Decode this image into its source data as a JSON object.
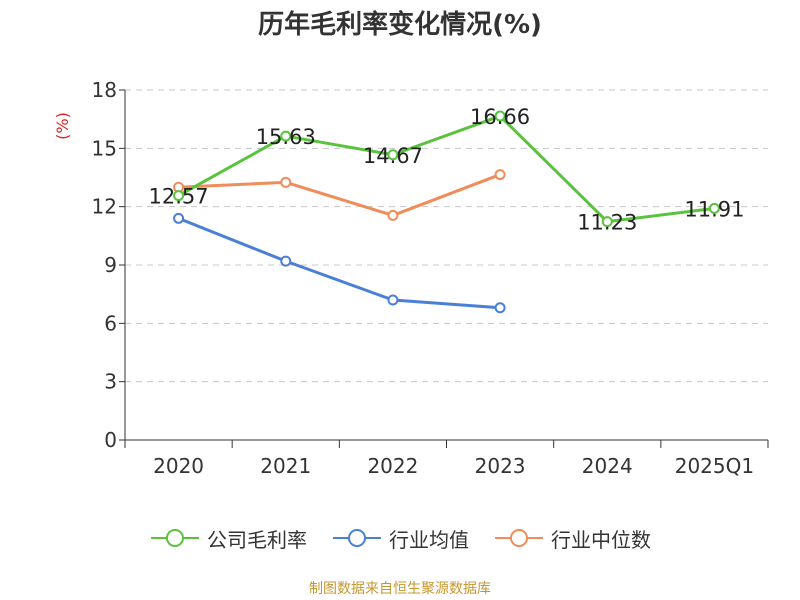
{
  "title": "历年毛利率变化情况(%)",
  "source": "制图数据来自恒生聚源数据库",
  "chart_data": {
    "type": "line",
    "title": "历年毛利率变化情况(%)",
    "ylabel": "(%)",
    "categories": [
      "2020",
      "2021",
      "2022",
      "2023",
      "2024",
      "2025Q1"
    ],
    "ylim": [
      0,
      18
    ],
    "yticks": [
      0,
      3,
      6,
      9,
      12,
      15,
      18
    ],
    "grid": true,
    "legend_position": "bottom",
    "series": [
      {
        "name": "公司毛利率",
        "color": "#5ac23c",
        "values": [
          12.57,
          15.63,
          14.67,
          16.66,
          11.23,
          11.91
        ],
        "labels": [
          "12.57",
          "15.63",
          "14.67",
          "16.66",
          "11.23",
          "11.91"
        ]
      },
      {
        "name": "行业均值",
        "color": "#4a7fd6",
        "values": [
          11.4,
          9.2,
          7.2,
          6.8,
          null,
          null
        ]
      },
      {
        "name": "行业中位数",
        "color": "#f08c5a",
        "values": [
          13.0,
          13.25,
          11.55,
          13.65,
          null,
          null
        ]
      }
    ]
  }
}
